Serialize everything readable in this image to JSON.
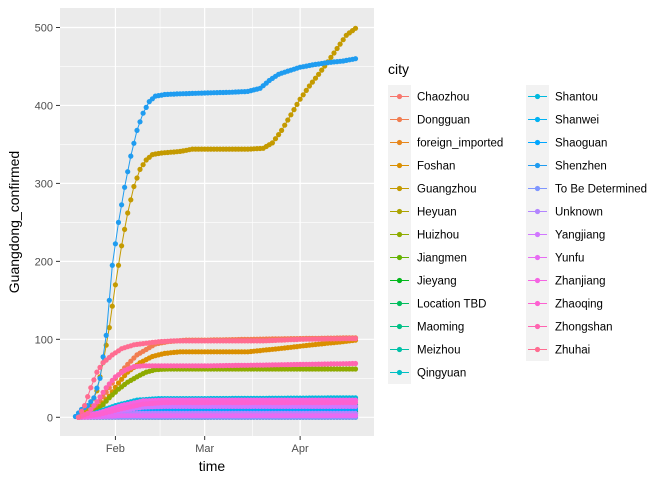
{
  "chart_data": {
    "type": "line",
    "xlabel": "time",
    "ylabel": "Guangdong_confirmed",
    "x_ticks": [
      {
        "label": "Feb",
        "date": "2020-02-01"
      },
      {
        "label": "Mar",
        "date": "2020-03-01"
      },
      {
        "label": "Apr",
        "date": "2020-04-01"
      }
    ],
    "xlim": [
      "2020-01-14",
      "2020-04-25"
    ],
    "ylim": [
      -24,
      525
    ],
    "y_ticks": [
      0,
      100,
      200,
      300,
      400,
      500
    ],
    "grid": true,
    "legend": {
      "title": "city",
      "position": "right",
      "columns": 2
    },
    "series": [
      {
        "name": "Chaozhou",
        "color": "#F8766D",
        "points": [
          [
            "2020-01-20",
            0
          ],
          [
            "2020-01-26",
            1
          ],
          [
            "2020-02-01",
            4
          ],
          [
            "2020-02-10",
            6
          ],
          [
            "2020-03-01",
            6
          ],
          [
            "2020-04-19",
            6
          ]
        ]
      },
      {
        "name": "Dongguan",
        "color": "#F17D50",
        "points": [
          [
            "2020-01-20",
            0
          ],
          [
            "2020-01-23",
            6
          ],
          [
            "2020-01-26",
            15
          ],
          [
            "2020-01-29",
            32
          ],
          [
            "2020-02-01",
            50
          ],
          [
            "2020-02-05",
            68
          ],
          [
            "2020-02-08",
            80
          ],
          [
            "2020-02-11",
            87
          ],
          [
            "2020-02-14",
            94
          ],
          [
            "2020-02-18",
            97
          ],
          [
            "2020-02-24",
            99
          ],
          [
            "2020-03-01",
            99
          ],
          [
            "2020-03-15",
            100
          ],
          [
            "2020-03-31",
            101
          ],
          [
            "2020-04-19",
            102
          ]
        ]
      },
      {
        "name": "foreign_imported",
        "color": "#E7861B",
        "points": [
          [
            "2020-01-20",
            0
          ],
          [
            "2020-03-01",
            0
          ],
          [
            "2020-03-10",
            2
          ],
          [
            "2020-03-20",
            6
          ],
          [
            "2020-03-31",
            10
          ],
          [
            "2020-04-10",
            14
          ],
          [
            "2020-04-19",
            16
          ]
        ]
      },
      {
        "name": "Foshan",
        "color": "#DA8F00",
        "points": [
          [
            "2020-01-20",
            0
          ],
          [
            "2020-01-24",
            4
          ],
          [
            "2020-01-27",
            14
          ],
          [
            "2020-01-30",
            27
          ],
          [
            "2020-02-02",
            44
          ],
          [
            "2020-02-05",
            58
          ],
          [
            "2020-02-09",
            70
          ],
          [
            "2020-02-13",
            78
          ],
          [
            "2020-02-17",
            82
          ],
          [
            "2020-02-22",
            84
          ],
          [
            "2020-03-01",
            84
          ],
          [
            "2020-03-15",
            84
          ],
          [
            "2020-03-25",
            88
          ],
          [
            "2020-04-05",
            93
          ],
          [
            "2020-04-15",
            97
          ],
          [
            "2020-04-19",
            99
          ]
        ]
      },
      {
        "name": "Guangzhou",
        "color": "#C49A00",
        "points": [
          [
            "2020-01-20",
            0
          ],
          [
            "2020-01-22",
            6
          ],
          [
            "2020-01-24",
            15
          ],
          [
            "2020-01-26",
            34
          ],
          [
            "2020-01-28",
            70
          ],
          [
            "2020-01-30",
            115
          ],
          [
            "2020-02-01",
            170
          ],
          [
            "2020-02-03",
            220
          ],
          [
            "2020-02-05",
            262
          ],
          [
            "2020-02-07",
            296
          ],
          [
            "2020-02-09",
            318
          ],
          [
            "2020-02-11",
            330
          ],
          [
            "2020-02-13",
            337
          ],
          [
            "2020-02-16",
            339
          ],
          [
            "2020-02-22",
            341
          ],
          [
            "2020-02-26",
            344
          ],
          [
            "2020-03-05",
            344
          ],
          [
            "2020-03-15",
            344
          ],
          [
            "2020-03-20",
            345
          ],
          [
            "2020-03-23",
            352
          ],
          [
            "2020-03-26",
            368
          ],
          [
            "2020-03-29",
            388
          ],
          [
            "2020-04-01",
            408
          ],
          [
            "2020-04-04",
            425
          ],
          [
            "2020-04-07",
            440
          ],
          [
            "2020-04-10",
            456
          ],
          [
            "2020-04-13",
            473
          ],
          [
            "2020-04-16",
            490
          ],
          [
            "2020-04-19",
            499
          ]
        ]
      },
      {
        "name": "Heyuan",
        "color": "#ABA300",
        "points": [
          [
            "2020-01-20",
            0
          ],
          [
            "2020-01-27",
            2
          ],
          [
            "2020-02-03",
            4
          ],
          [
            "2020-02-10",
            5
          ],
          [
            "2020-04-19",
            5
          ]
        ]
      },
      {
        "name": "Huizhou",
        "color": "#8EAB00",
        "points": [
          [
            "2020-01-20",
            0
          ],
          [
            "2020-01-24",
            3
          ],
          [
            "2020-01-27",
            12
          ],
          [
            "2020-01-30",
            25
          ],
          [
            "2020-02-02",
            36
          ],
          [
            "2020-02-05",
            45
          ],
          [
            "2020-02-08",
            52
          ],
          [
            "2020-02-11",
            58
          ],
          [
            "2020-02-14",
            61
          ],
          [
            "2020-02-18",
            62
          ],
          [
            "2020-03-01",
            62
          ],
          [
            "2020-04-19",
            62
          ]
        ]
      },
      {
        "name": "Jiangmen",
        "color": "#64B200",
        "points": [
          [
            "2020-01-20",
            0
          ],
          [
            "2020-01-27",
            4
          ],
          [
            "2020-02-03",
            12
          ],
          [
            "2020-02-10",
            20
          ],
          [
            "2020-02-17",
            23
          ],
          [
            "2020-03-01",
            23
          ],
          [
            "2020-04-19",
            23
          ]
        ]
      },
      {
        "name": "Jieyang",
        "color": "#00B81B",
        "points": [
          [
            "2020-01-20",
            0
          ],
          [
            "2020-01-27",
            3
          ],
          [
            "2020-02-03",
            6
          ],
          [
            "2020-02-10",
            8
          ],
          [
            "2020-04-19",
            8
          ]
        ]
      },
      {
        "name": "Location TBD",
        "color": "#00BD5C",
        "points": [
          [
            "2020-01-20",
            0
          ],
          [
            "2020-01-25",
            2
          ],
          [
            "2020-02-01",
            1
          ],
          [
            "2020-02-10",
            0
          ],
          [
            "2020-04-19",
            0
          ]
        ]
      },
      {
        "name": "Maoming",
        "color": "#00C085",
        "points": [
          [
            "2020-01-20",
            0
          ],
          [
            "2020-01-27",
            3
          ],
          [
            "2020-02-03",
            9
          ],
          [
            "2020-02-10",
            13
          ],
          [
            "2020-02-17",
            14
          ],
          [
            "2020-04-19",
            14
          ]
        ]
      },
      {
        "name": "Meizhou",
        "color": "#00C1A7",
        "points": [
          [
            "2020-01-20",
            0
          ],
          [
            "2020-01-27",
            5
          ],
          [
            "2020-02-03",
            12
          ],
          [
            "2020-02-10",
            16
          ],
          [
            "2020-02-17",
            16
          ],
          [
            "2020-04-19",
            16
          ]
        ]
      },
      {
        "name": "Qingyuan",
        "color": "#00BFC4",
        "points": [
          [
            "2020-01-20",
            0
          ],
          [
            "2020-01-27",
            4
          ],
          [
            "2020-02-03",
            10
          ],
          [
            "2020-02-10",
            12
          ],
          [
            "2020-04-19",
            12
          ]
        ]
      },
      {
        "name": "Shantou",
        "color": "#00BADE",
        "points": [
          [
            "2020-01-20",
            0
          ],
          [
            "2020-01-25",
            5
          ],
          [
            "2020-02-01",
            15
          ],
          [
            "2020-02-08",
            22
          ],
          [
            "2020-02-15",
            24
          ],
          [
            "2020-03-01",
            24
          ],
          [
            "2020-04-19",
            25
          ]
        ]
      },
      {
        "name": "Shanwei",
        "color": "#00B2F3",
        "points": [
          [
            "2020-01-20",
            0
          ],
          [
            "2020-01-27",
            2
          ],
          [
            "2020-02-03",
            4
          ],
          [
            "2020-02-10",
            5
          ],
          [
            "2020-04-19",
            5
          ]
        ]
      },
      {
        "name": "Shaoguan",
        "color": "#00A6FF",
        "points": [
          [
            "2020-01-20",
            0
          ],
          [
            "2020-01-27",
            3
          ],
          [
            "2020-02-03",
            7
          ],
          [
            "2020-02-10",
            9
          ],
          [
            "2020-02-17",
            10
          ],
          [
            "2020-04-19",
            10
          ]
        ]
      },
      {
        "name": "Shenzhen",
        "color": "#1F9CF0",
        "points": [
          [
            "2020-01-19",
            1
          ],
          [
            "2020-01-21",
            10
          ],
          [
            "2020-01-23",
            15
          ],
          [
            "2020-01-25",
            25
          ],
          [
            "2020-01-27",
            50
          ],
          [
            "2020-01-29",
            105
          ],
          [
            "2020-01-31",
            195
          ],
          [
            "2020-02-02",
            250
          ],
          [
            "2020-02-04",
            295
          ],
          [
            "2020-02-06",
            335
          ],
          [
            "2020-02-08",
            368
          ],
          [
            "2020-02-10",
            390
          ],
          [
            "2020-02-12",
            405
          ],
          [
            "2020-02-14",
            412
          ],
          [
            "2020-02-17",
            414
          ],
          [
            "2020-02-22",
            415
          ],
          [
            "2020-03-01",
            416
          ],
          [
            "2020-03-10",
            417
          ],
          [
            "2020-03-15",
            418
          ],
          [
            "2020-03-19",
            422
          ],
          [
            "2020-03-22",
            432
          ],
          [
            "2020-03-25",
            440
          ],
          [
            "2020-03-28",
            444
          ],
          [
            "2020-04-01",
            449
          ],
          [
            "2020-04-05",
            452
          ],
          [
            "2020-04-10",
            455
          ],
          [
            "2020-04-15",
            457
          ],
          [
            "2020-04-19",
            460
          ]
        ]
      },
      {
        "name": "To Be Determined",
        "color": "#7F96FF",
        "points": [
          [
            "2020-01-20",
            0
          ],
          [
            "2020-03-01",
            0
          ],
          [
            "2020-04-19",
            0
          ]
        ]
      },
      {
        "name": "Unknown",
        "color": "#B385FF",
        "points": [
          [
            "2020-01-20",
            0
          ],
          [
            "2020-01-28",
            3
          ],
          [
            "2020-02-05",
            5
          ],
          [
            "2020-02-12",
            5
          ],
          [
            "2020-04-19",
            5
          ]
        ]
      },
      {
        "name": "Yangjiang",
        "color": "#D177FF",
        "points": [
          [
            "2020-01-20",
            0
          ],
          [
            "2020-01-27",
            3
          ],
          [
            "2020-02-03",
            9
          ],
          [
            "2020-02-10",
            13
          ],
          [
            "2020-02-17",
            14
          ],
          [
            "2020-04-19",
            14
          ]
        ]
      },
      {
        "name": "Yunfu",
        "color": "#E76BF3",
        "points": [
          [
            "2020-01-20",
            0
          ],
          [
            "2020-01-27",
            1
          ],
          [
            "2020-02-03",
            2
          ],
          [
            "2020-04-19",
            2
          ]
        ]
      },
      {
        "name": "Zhanjiang",
        "color": "#F564E3",
        "points": [
          [
            "2020-01-20",
            0
          ],
          [
            "2020-01-27",
            6
          ],
          [
            "2020-02-03",
            15
          ],
          [
            "2020-02-10",
            21
          ],
          [
            "2020-02-17",
            22
          ],
          [
            "2020-03-01",
            22
          ],
          [
            "2020-04-19",
            22
          ]
        ]
      },
      {
        "name": "Zhaoqing",
        "color": "#FD61D1",
        "points": [
          [
            "2020-01-20",
            0
          ],
          [
            "2020-01-27",
            4
          ],
          [
            "2020-02-03",
            11
          ],
          [
            "2020-02-10",
            17
          ],
          [
            "2020-02-17",
            19
          ],
          [
            "2020-04-19",
            19
          ]
        ]
      },
      {
        "name": "Zhongshan",
        "color": "#FF64B0",
        "points": [
          [
            "2020-01-20",
            0
          ],
          [
            "2020-01-23",
            5
          ],
          [
            "2020-01-26",
            20
          ],
          [
            "2020-01-29",
            38
          ],
          [
            "2020-02-01",
            52
          ],
          [
            "2020-02-04",
            60
          ],
          [
            "2020-02-07",
            65
          ],
          [
            "2020-02-10",
            66
          ],
          [
            "2020-02-14",
            66
          ],
          [
            "2020-03-01",
            66
          ],
          [
            "2020-03-20",
            67
          ],
          [
            "2020-04-19",
            69
          ]
        ]
      },
      {
        "name": "Zhuhai",
        "color": "#FF6C91",
        "points": [
          [
            "2020-01-20",
            0
          ],
          [
            "2020-01-22",
            15
          ],
          [
            "2020-01-24",
            38
          ],
          [
            "2020-01-26",
            58
          ],
          [
            "2020-01-28",
            70
          ],
          [
            "2020-01-31",
            80
          ],
          [
            "2020-02-03",
            88
          ],
          [
            "2020-02-07",
            93
          ],
          [
            "2020-02-11",
            95
          ],
          [
            "2020-02-15",
            97
          ],
          [
            "2020-02-20",
            98
          ],
          [
            "2020-03-01",
            98
          ],
          [
            "2020-03-20",
            98
          ],
          [
            "2020-04-01",
            100
          ],
          [
            "2020-04-19",
            101
          ]
        ]
      }
    ]
  }
}
